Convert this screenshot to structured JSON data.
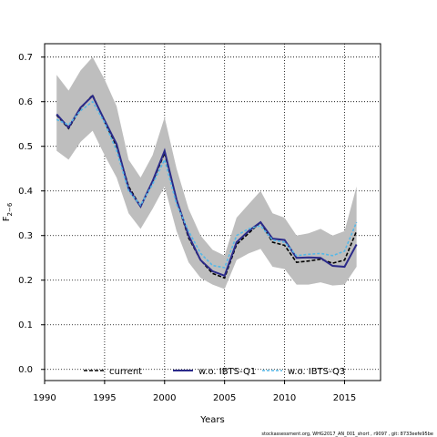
{
  "chart_data": {
    "type": "line",
    "xlabel": "Years",
    "ylabel": "F",
    "ylabel_sub": "2−6",
    "xlim": [
      1990,
      2018
    ],
    "ylim": [
      -0.025,
      0.73
    ],
    "xticks": [
      1990,
      1995,
      2000,
      2005,
      2010,
      2015
    ],
    "yticks": [
      0.0,
      0.1,
      0.2,
      0.3,
      0.4,
      0.5,
      0.6,
      0.7
    ],
    "grid": true,
    "legend_position": "bottom",
    "x": [
      1991,
      1992,
      1993,
      1994,
      1995,
      1996,
      1997,
      1998,
      1999,
      2000,
      2001,
      2002,
      2003,
      2004,
      2005,
      2006,
      2007,
      2008,
      2009,
      2010,
      2011,
      2012,
      2013,
      2014,
      2015,
      2016
    ],
    "band": {
      "color": "#bebebe",
      "lower": [
        0.49,
        0.47,
        0.51,
        0.535,
        0.48,
        0.43,
        0.35,
        0.315,
        0.36,
        0.41,
        0.31,
        0.24,
        0.205,
        0.19,
        0.18,
        0.245,
        0.26,
        0.27,
        0.23,
        0.225,
        0.19,
        0.19,
        0.195,
        0.188,
        0.19,
        0.23
      ],
      "upper": [
        0.66,
        0.625,
        0.67,
        0.7,
        0.65,
        0.59,
        0.47,
        0.43,
        0.48,
        0.565,
        0.45,
        0.36,
        0.3,
        0.268,
        0.255,
        0.34,
        0.37,
        0.4,
        0.35,
        0.34,
        0.3,
        0.305,
        0.315,
        0.3,
        0.31,
        0.41
      ]
    },
    "series": [
      {
        "name": "current",
        "color": "#000000",
        "dash": "4,2",
        "values": [
          0.57,
          0.54,
          0.585,
          0.615,
          0.555,
          0.5,
          0.41,
          0.365,
          0.42,
          0.485,
          0.38,
          0.295,
          0.245,
          0.215,
          0.205,
          0.28,
          0.305,
          0.33,
          0.285,
          0.278,
          0.24,
          0.243,
          0.247,
          0.238,
          0.245,
          0.31
        ]
      },
      {
        "name": "w.o. IBTS-Q1",
        "color": "#2b2a8a",
        "dash": "",
        "values": [
          0.572,
          0.542,
          0.587,
          0.613,
          0.558,
          0.505,
          0.405,
          0.365,
          0.422,
          0.49,
          0.38,
          0.3,
          0.245,
          0.22,
          0.21,
          0.285,
          0.31,
          0.33,
          0.293,
          0.29,
          0.25,
          0.251,
          0.25,
          0.232,
          0.23,
          0.28
        ]
      },
      {
        "name": "w.o. IBTS-Q3",
        "color": "#55b8e8",
        "dash": "3,2",
        "values": [
          0.56,
          0.548,
          0.58,
          0.6,
          0.553,
          0.49,
          0.4,
          0.368,
          0.415,
          0.47,
          0.37,
          0.31,
          0.26,
          0.233,
          0.228,
          0.3,
          0.315,
          0.322,
          0.29,
          0.285,
          0.255,
          0.258,
          0.26,
          0.255,
          0.265,
          0.33
        ]
      }
    ]
  },
  "footer": "stockassessment.org, WHG2017_AN_001_short , r9097 , git: 8733eefe95be"
}
